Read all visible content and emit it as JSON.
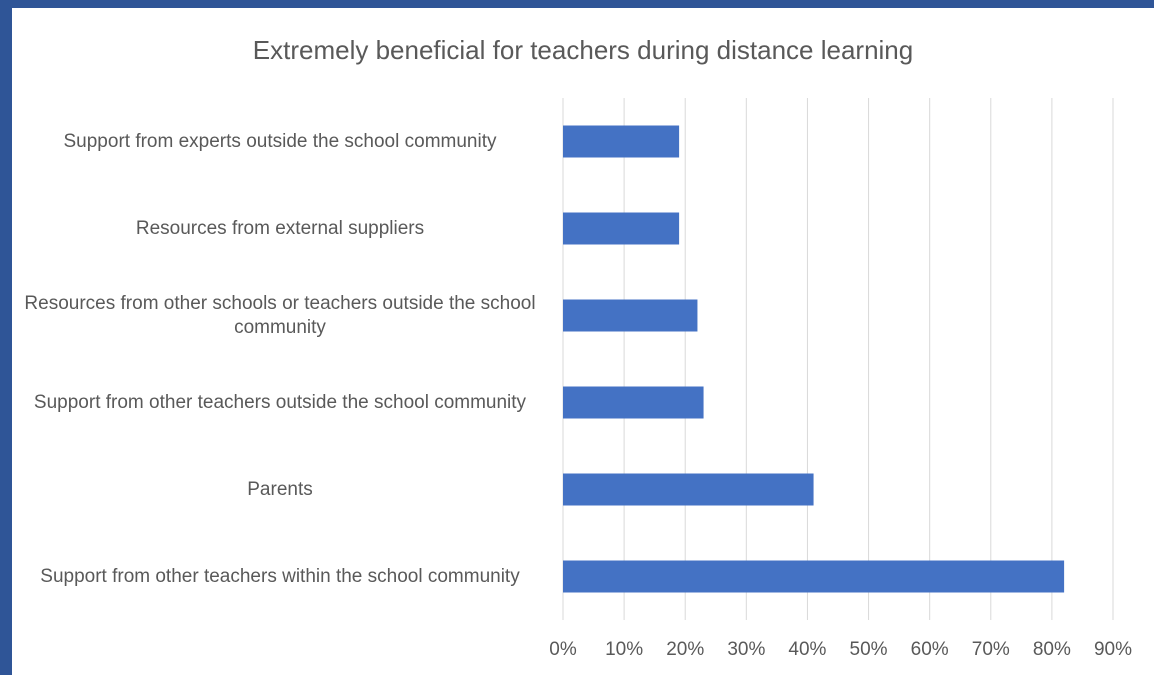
{
  "chart_data": {
    "type": "bar",
    "orientation": "horizontal",
    "title": "Extremely beneficial for teachers during distance learning",
    "categories": [
      "Support from experts outside the school community",
      "Resources from external suppliers",
      "Resources from other schools or teachers outside the school community",
      "Support from other teachers outside the school community",
      "Parents",
      "Support from other teachers within the school community"
    ],
    "values": [
      19,
      19,
      22,
      23,
      41,
      82
    ],
    "color": "#4472c4",
    "xlim": [
      0,
      90
    ],
    "xticks": [
      {
        "value": 0,
        "label": "0%"
      },
      {
        "value": 10,
        "label": "10%"
      },
      {
        "value": 20,
        "label": "20%"
      },
      {
        "value": 30,
        "label": "30%"
      },
      {
        "value": 40,
        "label": "40%"
      },
      {
        "value": 50,
        "label": "50%"
      },
      {
        "value": 60,
        "label": "60%"
      },
      {
        "value": 70,
        "label": "70%"
      },
      {
        "value": 80,
        "label": "80%"
      },
      {
        "value": 90,
        "label": "90%"
      }
    ],
    "grid": true
  }
}
